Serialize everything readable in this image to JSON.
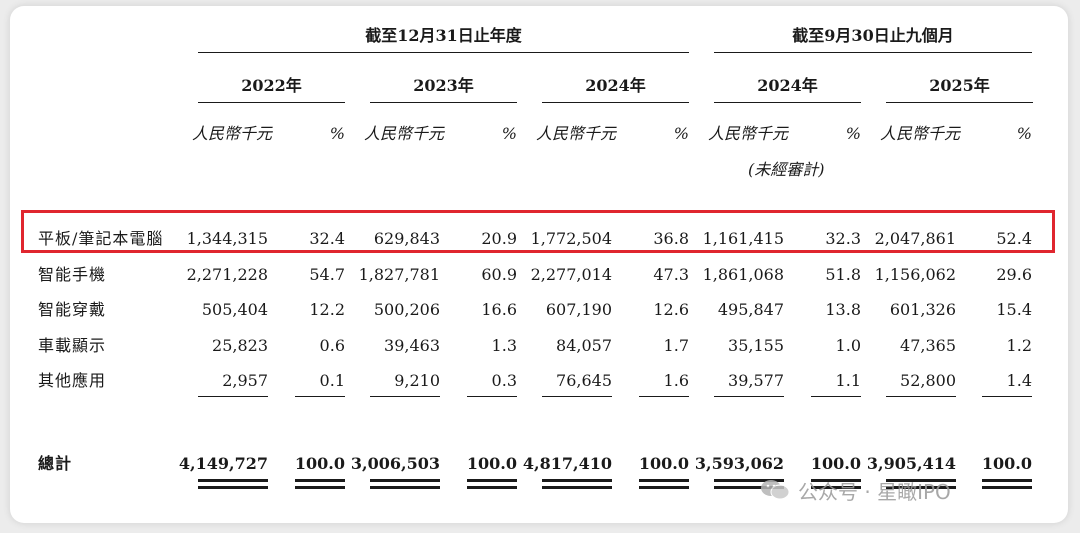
{
  "header": {
    "group_annual": "截至12月31日止年度",
    "group_nine": "截至9月30日止九個月",
    "years": [
      "2022年",
      "2023年",
      "2024年",
      "2024年",
      "2025年"
    ],
    "unit_rmb": "人民幣千元",
    "unit_pct": "%",
    "unaudited": "(未經審計)"
  },
  "rows": [
    {
      "label": "平板/筆記本電腦",
      "values": [
        "1,344,315",
        "32.4",
        "629,843",
        "20.9",
        "1,772,504",
        "36.8",
        "1,161,415",
        "32.3",
        "2,047,861",
        "52.4"
      ]
    },
    {
      "label": "智能手機",
      "values": [
        "2,271,228",
        "54.7",
        "1,827,781",
        "60.9",
        "2,277,014",
        "47.3",
        "1,861,068",
        "51.8",
        "1,156,062",
        "29.6"
      ]
    },
    {
      "label": "智能穿戴",
      "values": [
        "505,404",
        "12.2",
        "500,206",
        "16.6",
        "607,190",
        "12.6",
        "495,847",
        "13.8",
        "601,326",
        "15.4"
      ]
    },
    {
      "label": "車載顯示",
      "values": [
        "25,823",
        "0.6",
        "39,463",
        "1.3",
        "84,057",
        "1.7",
        "35,155",
        "1.0",
        "47,365",
        "1.2"
      ]
    },
    {
      "label": "其他應用",
      "values": [
        "2,957",
        "0.1",
        "9,210",
        "0.3",
        "76,645",
        "1.6",
        "39,577",
        "1.1",
        "52,800",
        "1.4"
      ]
    }
  ],
  "total": {
    "label": "總計",
    "values": [
      "4,149,727",
      "100.0",
      "3,006,503",
      "100.0",
      "4,817,410",
      "100.0",
      "3,593,062",
      "100.0",
      "3,905,414",
      "100.0"
    ]
  },
  "highlight_color": "#e0262f",
  "watermark": {
    "text": "公众号 · 星瞰IPO",
    "icon": "wechat-logo-icon"
  }
}
